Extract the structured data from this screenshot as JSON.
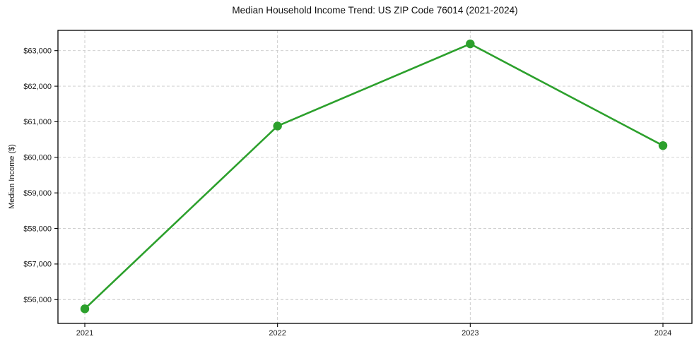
{
  "figure": {
    "background": "#ffffff"
  },
  "chart_data": {
    "type": "line",
    "title": "Median Household Income Trend: US ZIP Code 76014 (2021-2024)",
    "xlabel": "",
    "ylabel": "Median Income ($)",
    "categories": [
      "2021",
      "2022",
      "2023",
      "2024"
    ],
    "series": [
      {
        "values": [
          55740,
          60880,
          63190,
          60330
        ],
        "color": "#2ca02c",
        "marker": "circle"
      }
    ],
    "y_ticks": [
      56000,
      57000,
      58000,
      59000,
      60000,
      61000,
      62000,
      63000
    ],
    "y_tick_labels": [
      "$56,000",
      "$57,000",
      "$58,000",
      "$59,000",
      "$60,000",
      "$61,000",
      "$62,000",
      "$63,000"
    ],
    "ylim": [
      55330,
      63570
    ],
    "grid": true,
    "grid_line_style": "dashed",
    "grid_color": "#c9c9c9",
    "legend": "none",
    "axis_color": "#000000",
    "tick_label_color": "#1a1a1a"
  }
}
